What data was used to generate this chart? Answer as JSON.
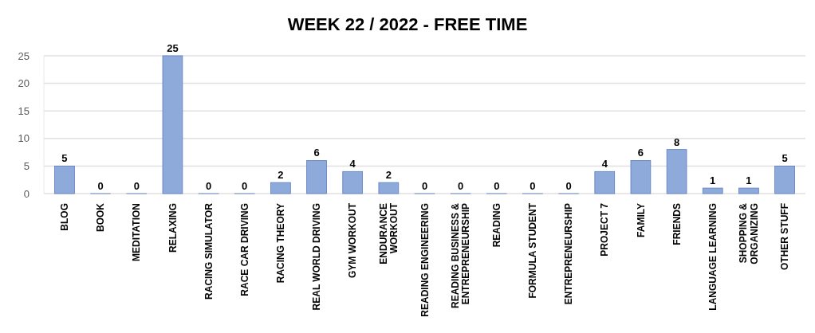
{
  "chart_data": {
    "type": "bar",
    "title": "WEEK 22 / 2022 - FREE TIME",
    "categories": [
      "BLOG",
      "BOOK",
      "MEDITATION",
      "RELAXING",
      "RACING SIMULATOR",
      "RACE CAR DRIVING",
      "RACING THEORY",
      "REAL WORLD DRIVING",
      "GYM WORKOUT",
      "ENDURANCE\nWORKOUT",
      "READING ENGINEERING",
      "READING BUSINESS &\nENTREPRENEURSHIP",
      "READING",
      "FORMULA STUDENT",
      "ENTREPRENEURSHIP",
      "PROJECT 7",
      "FAMILY",
      "FRIENDS",
      "LANGUAGE LEARNING",
      "SHOPPING &\nORGANIZING",
      "OTHER STUFF"
    ],
    "values": [
      5,
      0,
      0,
      25,
      0,
      0,
      2,
      6,
      4,
      2,
      0,
      0,
      0,
      0,
      0,
      4,
      6,
      8,
      1,
      1,
      5
    ],
    "color": "#8eaadb",
    "ylim": [
      0,
      25
    ],
    "yticks": [
      0,
      5,
      10,
      15,
      20,
      25
    ],
    "grid": true,
    "data_labels": true
  }
}
